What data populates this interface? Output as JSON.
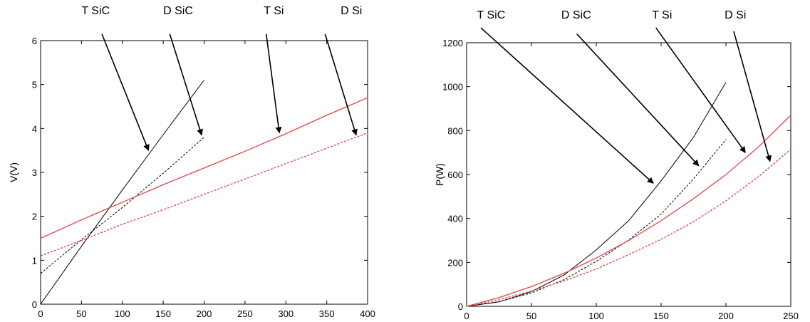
{
  "chart_data": [
    {
      "type": "line",
      "title": "",
      "xlabel": "",
      "ylabel": "V(V)",
      "xlim": [
        0,
        400
      ],
      "ylim": [
        0,
        6
      ],
      "xticks": [
        0,
        50,
        100,
        150,
        200,
        250,
        300,
        350,
        400
      ],
      "yticks": [
        0,
        1,
        2,
        3,
        4,
        5,
        6
      ],
      "grid": false,
      "series": [
        {
          "name": "T SiC",
          "color": "#000000",
          "style": "solid",
          "x": [
            0,
            50,
            100,
            150,
            200
          ],
          "y": [
            0,
            1.32,
            2.6,
            3.86,
            5.1
          ]
        },
        {
          "name": "D SiC",
          "color": "#000000",
          "style": "dashed",
          "x": [
            0,
            50,
            100,
            150,
            200
          ],
          "y": [
            0.7,
            1.47,
            2.2,
            2.98,
            3.8
          ]
        },
        {
          "name": "T Si",
          "color": "#e05050",
          "style": "solid",
          "x": [
            0,
            50,
            100,
            150,
            200,
            250,
            300,
            350,
            400
          ],
          "y": [
            1.5,
            1.92,
            2.32,
            2.72,
            3.1,
            3.48,
            3.88,
            4.3,
            4.7
          ]
        },
        {
          "name": "D Si",
          "color": "#e05050",
          "style": "dashed",
          "x": [
            0,
            50,
            100,
            150,
            200,
            250,
            300,
            350,
            400
          ],
          "y": [
            1.1,
            1.45,
            1.82,
            2.15,
            2.5,
            2.85,
            3.2,
            3.55,
            3.9
          ]
        }
      ],
      "annotations": [
        {
          "text": "T SiC",
          "label_x": 50,
          "label_top": 4,
          "arrow_from": [
            75,
            6.15
          ],
          "arrow_to": [
            132,
            3.5
          ]
        },
        {
          "text": "D SiC",
          "label_x": 150,
          "label_top": 4,
          "arrow_from": [
            158,
            6.15
          ],
          "arrow_to": [
            197,
            3.85
          ]
        },
        {
          "text": "T Si",
          "label_x": 273,
          "label_top": 4,
          "arrow_from": [
            276,
            6.15
          ],
          "arrow_to": [
            292,
            3.9
          ]
        },
        {
          "text": "D Si",
          "label_x": 367,
          "label_top": 4,
          "arrow_from": [
            348,
            6.15
          ],
          "arrow_to": [
            386,
            3.85
          ]
        }
      ]
    },
    {
      "type": "line",
      "title": "",
      "xlabel": "",
      "ylabel": "P(W)",
      "xlim": [
        0,
        250
      ],
      "ylim": [
        0,
        1200
      ],
      "xticks": [
        0,
        50,
        100,
        150,
        200,
        250
      ],
      "yticks": [
        0,
        200,
        400,
        600,
        800,
        1000,
        1200
      ],
      "grid": false,
      "series": [
        {
          "name": "T SiC",
          "color": "#000000",
          "style": "solid",
          "x": [
            0,
            25,
            50,
            75,
            100,
            125,
            150,
            175,
            200
          ],
          "y": [
            0,
            20,
            67,
            142,
            257,
            390,
            571,
            770,
            1020
          ]
        },
        {
          "name": "D SiC",
          "color": "#000000",
          "style": "dashed",
          "x": [
            0,
            25,
            50,
            75,
            100,
            125,
            150,
            175,
            200
          ],
          "y": [
            0,
            21,
            61,
            121,
            205,
            302,
            420,
            580,
            760
          ]
        },
        {
          "name": "T Si",
          "color": "#e05050",
          "style": "solid",
          "x": [
            0,
            25,
            50,
            75,
            100,
            125,
            150,
            175,
            200,
            225,
            250
          ],
          "y": [
            0,
            40,
            90,
            150,
            220,
            300,
            390,
            490,
            600,
            725,
            870
          ]
        },
        {
          "name": "D Si",
          "color": "#e05050",
          "style": "dashed",
          "x": [
            0,
            25,
            50,
            75,
            100,
            125,
            150,
            175,
            200,
            225,
            250
          ],
          "y": [
            0,
            30,
            70,
            115,
            170,
            235,
            305,
            385,
            480,
            590,
            715
          ]
        }
      ],
      "annotations": [
        {
          "text": "T SiC",
          "label_x": 8,
          "label_top": 10,
          "arrow_from": [
            11,
            1268
          ],
          "arrow_to": [
            144,
            560
          ]
        },
        {
          "text": "D SiC",
          "label_x": 73,
          "label_top": 10,
          "arrow_from": [
            85,
            1240
          ],
          "arrow_to": [
            179,
            640
          ]
        },
        {
          "text": "T Si",
          "label_x": 143,
          "label_top": 10,
          "arrow_from": [
            146,
            1268
          ],
          "arrow_to": [
            215,
            700
          ]
        },
        {
          "text": "D Si",
          "label_x": 199,
          "label_top": 10,
          "arrow_from": [
            206,
            1252
          ],
          "arrow_to": [
            234,
            660
          ]
        }
      ]
    }
  ]
}
